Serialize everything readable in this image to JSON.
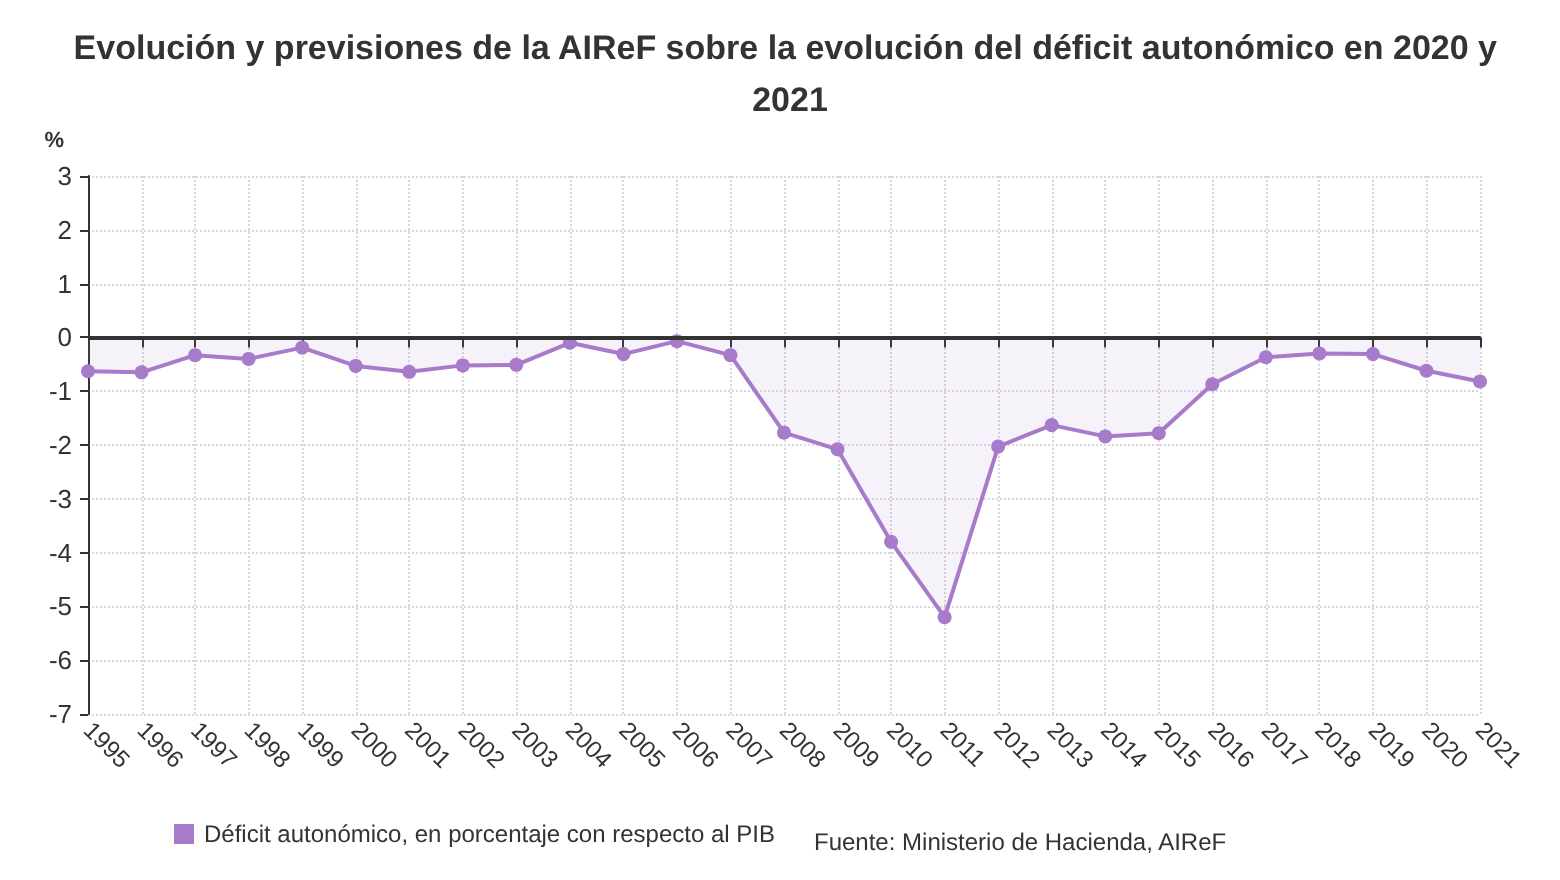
{
  "chart_data": {
    "type": "area",
    "title": "Evolución y previsiones de la AIReF sobre la evolución del déficit autonómico en 2020 y 2021",
    "ylabel": "%",
    "categories": [
      "1995",
      "1996",
      "1997",
      "1998",
      "1999",
      "2000",
      "2001",
      "2002",
      "2003",
      "2004",
      "2005",
      "2006",
      "2007",
      "2008",
      "2009",
      "2010",
      "2011",
      "2012",
      "2013",
      "2014",
      "2015",
      "2016",
      "2017",
      "2018",
      "2019",
      "2020",
      "2021"
    ],
    "series": [
      {
        "name": "Déficit autonómico, en porcentaje con respecto al PIB",
        "color": "#a77bca",
        "values": [
          -0.63,
          -0.65,
          -0.33,
          -0.4,
          -0.19,
          -0.53,
          -0.64,
          -0.52,
          -0.51,
          -0.1,
          -0.31,
          -0.07,
          -0.33,
          -1.77,
          -2.08,
          -3.8,
          -5.2,
          -2.03,
          -1.63,
          -1.84,
          -1.78,
          -0.87,
          -0.37,
          -0.3,
          -0.31,
          -0.62,
          -0.82
        ]
      }
    ],
    "ylim": [
      -7,
      3
    ],
    "yticks": [
      -7,
      -6,
      -5,
      -4,
      -3,
      -2,
      -1,
      0,
      1,
      2,
      3
    ],
    "ref_lines": [
      {
        "axis": "y",
        "value": 0,
        "color": "#333333"
      }
    ],
    "annotations": [
      "Fuente: Ministerio de Hacienda, AIReF"
    ],
    "grid": true,
    "legend": "bottom",
    "marker": "circle",
    "line_style": "solid"
  }
}
